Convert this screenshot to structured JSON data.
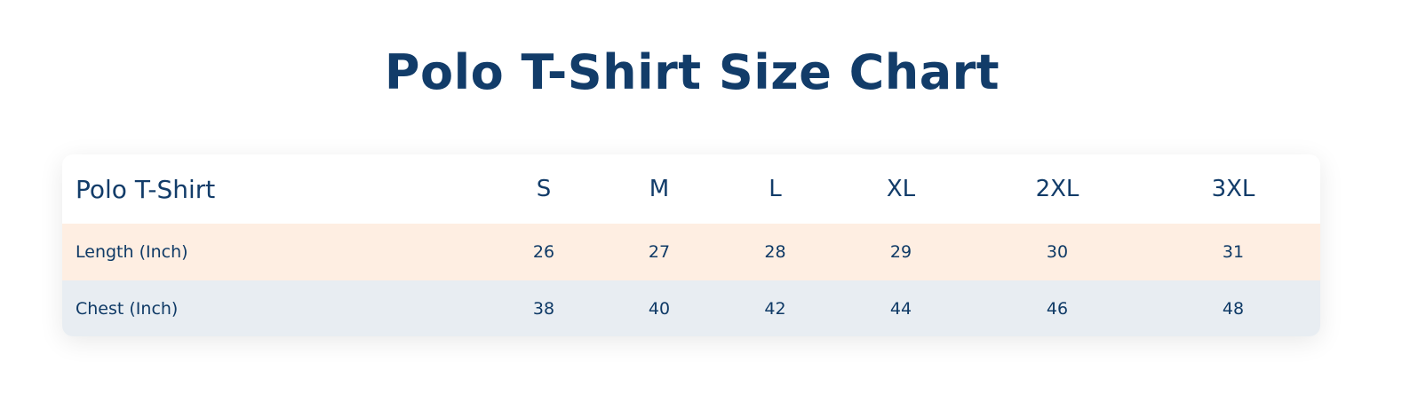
{
  "title": "Polo T-Shirt Size Chart",
  "table": {
    "headers": [
      "Polo T-Shirt",
      "S",
      "M",
      "L",
      "XL",
      "2XL",
      "3XL"
    ],
    "rows": [
      {
        "label": "Length (Inch)",
        "values": [
          "26",
          "27",
          "28",
          "29",
          "30",
          "31"
        ]
      },
      {
        "label": "Chest (Inch)",
        "values": [
          "38",
          "40",
          "42",
          "44",
          "46",
          "48"
        ]
      }
    ]
  },
  "colors": {
    "text": "#123c69",
    "row_length_bg": "#feeee2",
    "row_chest_bg": "#e8edf2"
  }
}
